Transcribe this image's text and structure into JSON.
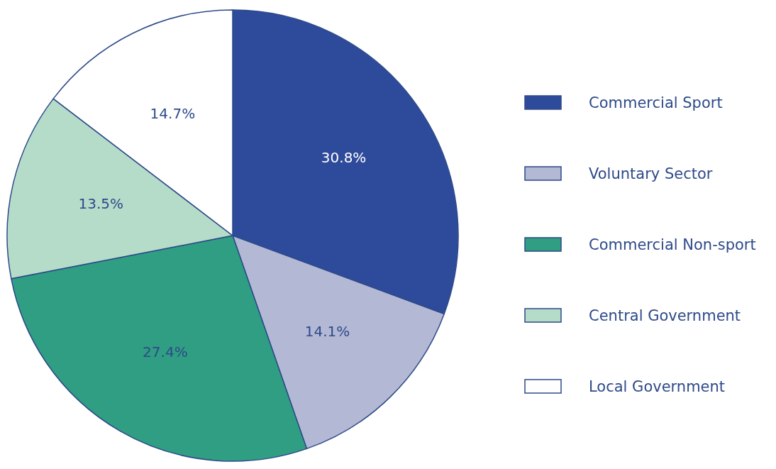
{
  "chart_data": {
    "type": "pie",
    "categories": [
      "Commercial Sport",
      "Voluntary Sector",
      "Commercial Non-sport",
      "Central Government",
      "Local Government"
    ],
    "values": [
      30.8,
      14.1,
      27.4,
      13.5,
      14.7
    ],
    "colors": [
      "#2e4a9a",
      "#b3b8d4",
      "#2f9e82",
      "#b5dcc8",
      "#ffffff"
    ],
    "value_labels": [
      "30.8%",
      "14.1%",
      "27.4%",
      "13.5%",
      "14.7%"
    ],
    "legend": "right"
  }
}
